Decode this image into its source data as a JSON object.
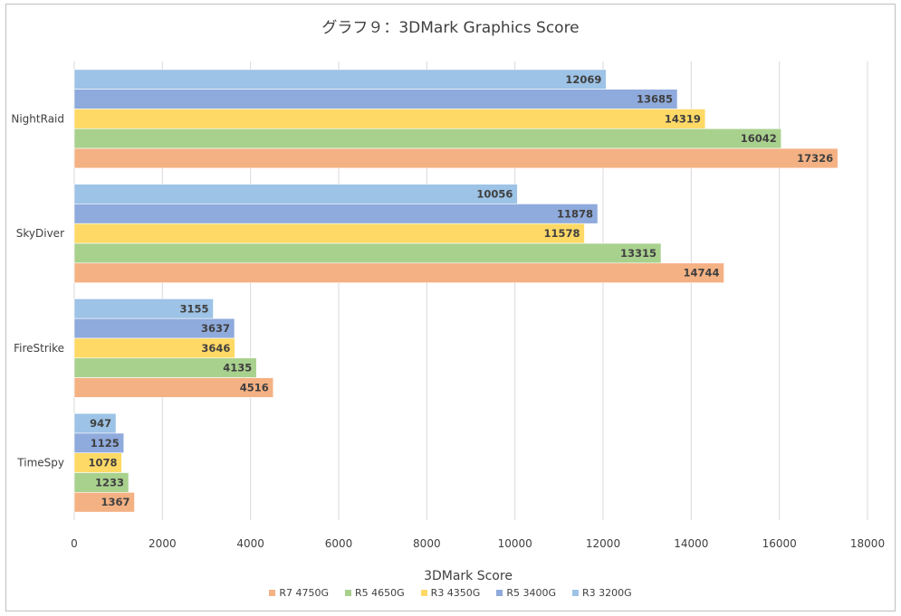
{
  "chart_data": {
    "type": "bar",
    "orientation": "horizontal",
    "title": "グラフ９：3DMark Graphics Score",
    "xlabel": "3DMark Score",
    "ylabel": "",
    "xlim": [
      0,
      18000
    ],
    "x_ticks": [
      "0",
      "2000",
      "4000",
      "6000",
      "8000",
      "10000",
      "12000",
      "14000",
      "16000",
      "18000"
    ],
    "grid": "vertical",
    "legend_position": "bottom",
    "categories": [
      "NightRaid",
      "SkyDiver",
      "FireStrike",
      "TimeSpy"
    ],
    "series": [
      {
        "name": "R7 4750G",
        "color": "#F4B183",
        "values": [
          17326,
          14744,
          4516,
          1367
        ]
      },
      {
        "name": "R5 4650G",
        "color": "#A9D18E",
        "values": [
          16042,
          13315,
          4135,
          1233
        ]
      },
      {
        "name": "R3 4350G",
        "color": "#FFD966",
        "values": [
          14319,
          11578,
          3646,
          1078
        ]
      },
      {
        "name": "R5 3400G",
        "color": "#8FAADC",
        "values": [
          13685,
          11878,
          3637,
          1125
        ]
      },
      {
        "name": "R3 3200G",
        "color": "#9DC3E6",
        "values": [
          12069,
          10056,
          3155,
          947
        ]
      }
    ]
  }
}
